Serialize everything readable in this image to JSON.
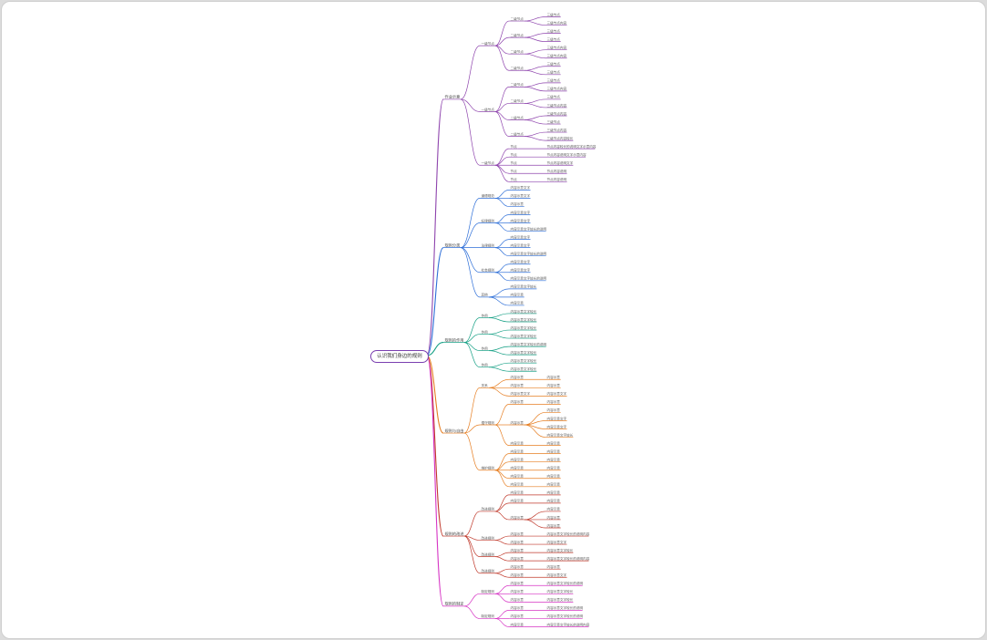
{
  "root": "认识我们身边的规则",
  "branches": [
    {
      "label": "作业示意",
      "color": "#8e44ad",
      "children": [
        {
          "label": "一级节点",
          "children": [
            {
              "label": "二级节点",
              "children": [
                {
                  "label": "三级节点"
                },
                {
                  "label": "三级节点内容"
                }
              ]
            },
            {
              "label": "二级节点",
              "children": [
                {
                  "label": "三级节点"
                },
                {
                  "label": "三级节点"
                }
              ]
            },
            {
              "label": "二级节点",
              "children": [
                {
                  "label": "三级节点内容"
                },
                {
                  "label": "三级节点内容"
                }
              ]
            },
            {
              "label": "二级节点",
              "children": [
                {
                  "label": "三级节点"
                },
                {
                  "label": "三级节点"
                }
              ]
            }
          ]
        },
        {
          "label": "一级节点",
          "children": [
            {
              "label": "二级节点",
              "children": [
                {
                  "label": "三级节点"
                },
                {
                  "label": "三级节点内容"
                }
              ]
            },
            {
              "label": "二级节点",
              "children": [
                {
                  "label": "三级节点"
                },
                {
                  "label": "三级节点内容"
                }
              ]
            },
            {
              "label": "二级节点",
              "children": [
                {
                  "label": "三级节点内容"
                },
                {
                  "label": "三级节点"
                }
              ]
            },
            {
              "label": "二级节点",
              "children": [
                {
                  "label": "三级节点内容"
                },
                {
                  "label": "三级节点内容较长"
                }
              ]
            }
          ]
        },
        {
          "label": "一级节点",
          "children": [
            {
              "label": "节点",
              "children": [
                {
                  "label": "节点内容较长的说明文字示意内容"
                }
              ]
            },
            {
              "label": "节点",
              "children": [
                {
                  "label": "节点内容说明文字示意内容"
                }
              ]
            },
            {
              "label": "节点",
              "children": [
                {
                  "label": "节点内容说明文字"
                }
              ]
            },
            {
              "label": "节点",
              "children": [
                {
                  "label": "节点内容说明"
                }
              ]
            },
            {
              "label": "节点",
              "children": [
                {
                  "label": "节点内容说明"
                }
              ]
            }
          ]
        }
      ]
    },
    {
      "label": "规则分类",
      "color": "#2e6fd8",
      "children": [
        {
          "label": "道德规范",
          "children": [
            {
              "label": "内容示意文字"
            },
            {
              "label": "内容示意文字"
            },
            {
              "label": "内容示意"
            }
          ]
        },
        {
          "label": "纪律规则",
          "children": [
            {
              "label": "内容示意文字"
            },
            {
              "label": "内容示意文字"
            },
            {
              "label": "内容示意文字较长的说明"
            }
          ]
        },
        {
          "label": "法律规则",
          "children": [
            {
              "label": "内容示意文字"
            },
            {
              "label": "内容示意文字"
            },
            {
              "label": "内容示意文字较长的说明"
            }
          ]
        },
        {
          "label": "社会规则",
          "children": [
            {
              "label": "内容示意文字"
            },
            {
              "label": "内容示意文字"
            },
            {
              "label": "内容示意文字较长的说明"
            }
          ]
        },
        {
          "label": "其他",
          "children": [
            {
              "label": "内容示意文字较长"
            },
            {
              "label": "内容示意"
            },
            {
              "label": "内容示意"
            }
          ]
        }
      ]
    },
    {
      "label": "规则的作用",
      "color": "#16a085",
      "children": [
        {
          "label": "作用",
          "children": [
            {
              "label": "内容示意文字较长"
            },
            {
              "label": "内容示意文字较长"
            }
          ]
        },
        {
          "label": "作用",
          "children": [
            {
              "label": "内容示意文字较长"
            },
            {
              "label": "内容示意文字较长"
            }
          ]
        },
        {
          "label": "作用",
          "children": [
            {
              "label": "内容示意文字较长的说明"
            },
            {
              "label": "内容示意文字较长"
            }
          ]
        },
        {
          "label": "作用",
          "children": [
            {
              "label": "内容示意文字较长"
            },
            {
              "label": "内容示意文字较长"
            }
          ]
        }
      ]
    },
    {
      "label": "规则与自由",
      "color": "#e67e22",
      "children": [
        {
          "label": "关系",
          "children": [
            {
              "label": "内容示意",
              "children": [
                {
                  "label": "内容示意"
                }
              ]
            },
            {
              "label": "内容示意",
              "children": [
                {
                  "label": "内容示意"
                }
              ]
            },
            {
              "label": "内容示意文字",
              "children": [
                {
                  "label": "内容示意文字"
                }
              ]
            }
          ]
        },
        {
          "label": "遵守规则",
          "children": [
            {
              "label": "内容示意",
              "children": [
                {
                  "label": "内容示意"
                }
              ]
            },
            {
              "label": "内容示意",
              "children": [
                {
                  "label": "内容示意"
                },
                {
                  "label": "内容示意文字"
                },
                {
                  "label": "内容示意文字"
                },
                {
                  "label": "内容示意文字较长"
                }
              ]
            },
            {
              "label": "内容示意",
              "children": [
                {
                  "label": "内容示意"
                }
              ]
            }
          ]
        },
        {
          "label": "维护规则",
          "children": [
            {
              "label": "内容示意",
              "children": [
                {
                  "label": "内容示意"
                }
              ]
            },
            {
              "label": "内容示意",
              "children": [
                {
                  "label": "内容示意"
                }
              ]
            },
            {
              "label": "内容示意",
              "children": [
                {
                  "label": "内容示意"
                }
              ]
            },
            {
              "label": "内容示意",
              "children": [
                {
                  "label": "内容示意"
                }
              ]
            },
            {
              "label": "内容示意",
              "children": [
                {
                  "label": "内容示意"
                }
              ]
            }
          ]
        }
      ]
    },
    {
      "label": "规则的改进",
      "color": "#c0392b",
      "children": [
        {
          "label": "改进规则",
          "children": [
            {
              "label": "内容示意",
              "children": [
                {
                  "label": "内容示意"
                }
              ]
            },
            {
              "label": "内容示意",
              "children": [
                {
                  "label": "内容示意"
                }
              ]
            },
            {
              "label": "内容示意",
              "children": [
                {
                  "label": "内容示意"
                },
                {
                  "label": "内容示意"
                },
                {
                  "label": "内容示意"
                }
              ]
            }
          ]
        },
        {
          "label": "改进规则",
          "children": [
            {
              "label": "内容示意",
              "children": [
                {
                  "label": "内容示意文字较长的说明内容"
                }
              ]
            },
            {
              "label": "内容示意",
              "children": [
                {
                  "label": "内容示意文字"
                }
              ]
            }
          ]
        },
        {
          "label": "改进规则",
          "children": [
            {
              "label": "内容示意",
              "children": [
                {
                  "label": "内容示意文字较长"
                }
              ]
            },
            {
              "label": "内容示意",
              "children": [
                {
                  "label": "内容示意文字较长的说明内容"
                }
              ]
            }
          ]
        },
        {
          "label": "改进规则",
          "children": [
            {
              "label": "内容示意",
              "children": [
                {
                  "label": "内容示意"
                }
              ]
            },
            {
              "label": "内容示意",
              "children": [
                {
                  "label": "内容示意文字"
                }
              ]
            }
          ]
        }
      ]
    },
    {
      "label": "规则的制定",
      "color": "#d633c4",
      "children": [
        {
          "label": "制定规则",
          "children": [
            {
              "label": "内容示意",
              "children": [
                {
                  "label": "内容示意文字较长的说明"
                }
              ]
            },
            {
              "label": "内容示意",
              "children": [
                {
                  "label": "内容示意文字较长"
                }
              ]
            },
            {
              "label": "内容示意",
              "children": [
                {
                  "label": "内容示意文字较长"
                }
              ]
            }
          ]
        },
        {
          "label": "制定规则",
          "children": [
            {
              "label": "内容示意",
              "children": [
                {
                  "label": "内容示意文字较长的说明"
                }
              ]
            },
            {
              "label": "内容示意",
              "children": [
                {
                  "label": "内容示意文字较长的说明"
                }
              ]
            },
            {
              "label": "内容示意",
              "children": [
                {
                  "label": "内容示意文字较长的说明内容"
                }
              ]
            }
          ]
        }
      ]
    }
  ]
}
